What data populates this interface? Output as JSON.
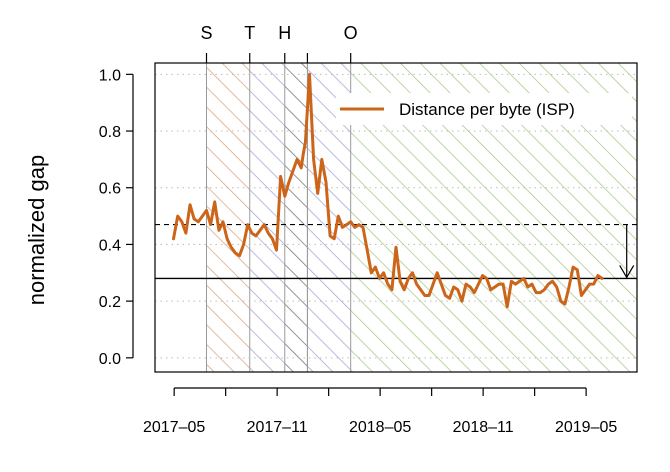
{
  "chart_data": {
    "type": "line",
    "title": "",
    "xlabel": "",
    "ylabel": "normalized gap",
    "xlim": [
      2017.24,
      2019.58
    ],
    "ylim": [
      -0.05,
      1.04
    ],
    "y_ticks": [
      0.0,
      0.2,
      0.4,
      0.6,
      0.8,
      1.0
    ],
    "y_tick_labels": [
      "0.0",
      "0.2",
      "0.4",
      "0.6",
      "0.8",
      "1.0"
    ],
    "x_ticks": [
      2017.333,
      2017.833,
      2018.333,
      2018.833,
      2019.333
    ],
    "x_tick_labels": [
      "2017‒05",
      "2017‒11",
      "2018‒05",
      "2018‒11",
      "2019‒05"
    ],
    "grid": true,
    "legend": {
      "position": "top-right",
      "entries": [
        "Distance per byte (ISP)"
      ]
    },
    "colors": {
      "series": "#cc6419",
      "S": "#d9a987",
      "T": "#a9a9d6",
      "H": "#7a7a7a",
      "O": "#aecb8f",
      "grid": "#bbbbbb"
    },
    "events": [
      {
        "label": "S",
        "start": 2017.49,
        "end": 2017.7,
        "color_key": "S"
      },
      {
        "label": "T",
        "start": 2017.7,
        "end": 2017.87,
        "color_key": "T"
      },
      {
        "label": "H",
        "start": 2017.87,
        "end": 2017.98,
        "color_key": "H"
      },
      {
        "label": "",
        "start": 2017.98,
        "end": 2018.19,
        "color_key": "T"
      },
      {
        "label": "O",
        "start": 2018.19,
        "end": 2019.58,
        "color_key": "O"
      }
    ],
    "event_dividers": [
      2017.98
    ],
    "reference_lines": {
      "dashed": 0.47,
      "solid": 0.28,
      "arrow_x": 2019.53
    },
    "series": [
      {
        "name": "Distance per byte (ISP)",
        "x": [
          2017.33,
          2017.35,
          2017.37,
          2017.39,
          2017.41,
          2017.43,
          2017.45,
          2017.47,
          2017.49,
          2017.51,
          2017.53,
          2017.55,
          2017.57,
          2017.59,
          2017.61,
          2017.63,
          2017.65,
          2017.67,
          2017.69,
          2017.71,
          2017.73,
          2017.75,
          2017.77,
          2017.79,
          2017.81,
          2017.83,
          2017.85,
          2017.87,
          2017.89,
          2017.91,
          2017.93,
          2017.95,
          2017.96,
          2017.97,
          2017.99,
          2018.01,
          2018.03,
          2018.05,
          2018.07,
          2018.09,
          2018.11,
          2018.13,
          2018.15,
          2018.17,
          2018.19,
          2018.21,
          2018.23,
          2018.25,
          2018.27,
          2018.29,
          2018.31,
          2018.33,
          2018.35,
          2018.37,
          2018.39,
          2018.41,
          2018.43,
          2018.45,
          2018.47,
          2018.49,
          2018.51,
          2018.53,
          2018.55,
          2018.57,
          2018.59,
          2018.61,
          2018.63,
          2018.65,
          2018.67,
          2018.69,
          2018.71,
          2018.73,
          2018.75,
          2018.77,
          2018.79,
          2018.81,
          2018.83,
          2018.85,
          2018.87,
          2018.89,
          2018.91,
          2018.93,
          2018.95,
          2018.97,
          2018.99,
          2019.01,
          2019.03,
          2019.05,
          2019.07,
          2019.09,
          2019.11,
          2019.13,
          2019.15,
          2019.17,
          2019.19,
          2019.21,
          2019.23,
          2019.25,
          2019.27,
          2019.29,
          2019.31,
          2019.33,
          2019.35,
          2019.37,
          2019.39,
          2019.41
        ],
        "values": [
          0.42,
          0.5,
          0.48,
          0.44,
          0.54,
          0.49,
          0.48,
          0.5,
          0.52,
          0.47,
          0.55,
          0.45,
          0.48,
          0.42,
          0.39,
          0.37,
          0.36,
          0.4,
          0.47,
          0.44,
          0.43,
          0.45,
          0.47,
          0.44,
          0.42,
          0.38,
          0.64,
          0.57,
          0.62,
          0.66,
          0.7,
          0.67,
          0.72,
          0.76,
          1.0,
          0.7,
          0.58,
          0.7,
          0.62,
          0.43,
          0.42,
          0.5,
          0.46,
          0.47,
          0.48,
          0.46,
          0.47,
          0.46,
          0.38,
          0.3,
          0.32,
          0.28,
          0.3,
          0.26,
          0.24,
          0.39,
          0.27,
          0.24,
          0.28,
          0.3,
          0.26,
          0.24,
          0.22,
          0.22,
          0.26,
          0.3,
          0.26,
          0.22,
          0.21,
          0.25,
          0.24,
          0.2,
          0.26,
          0.25,
          0.23,
          0.26,
          0.29,
          0.28,
          0.24,
          0.25,
          0.26,
          0.26,
          0.18,
          0.27,
          0.26,
          0.27,
          0.28,
          0.25,
          0.26,
          0.23,
          0.23,
          0.24,
          0.26,
          0.27,
          0.25,
          0.2,
          0.19,
          0.25,
          0.32,
          0.31,
          0.22,
          0.24,
          0.26,
          0.26,
          0.29,
          0.28
        ]
      }
    ]
  }
}
